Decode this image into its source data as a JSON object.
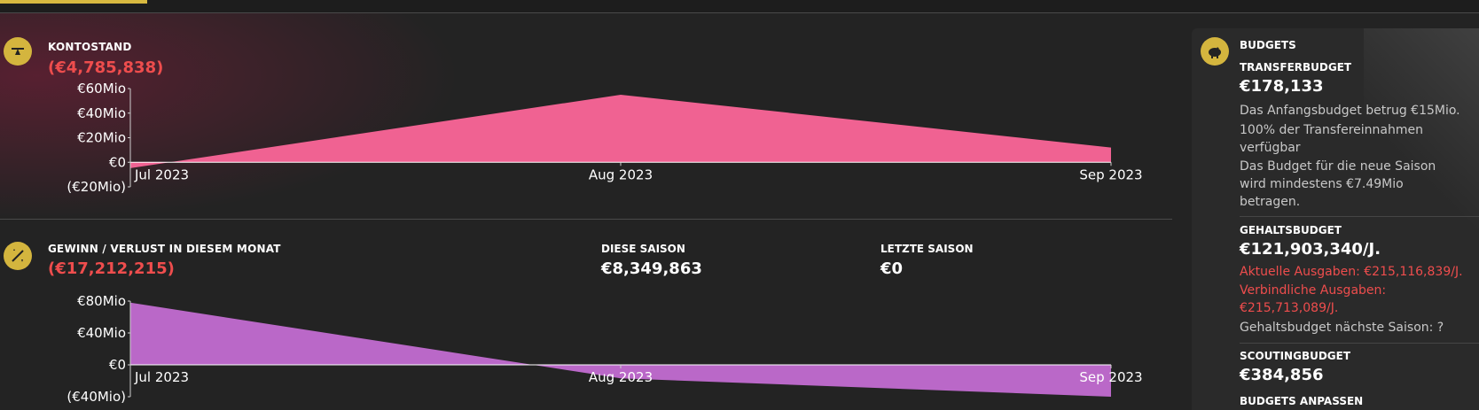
{
  "balance": {
    "label": "KONTOSTAND",
    "value": "(€4,785,838)",
    "chart_data": {
      "type": "area",
      "x": [
        "Jul 2023",
        "Aug 2023",
        "Sep 2023"
      ],
      "y": [
        -4.8,
        55,
        12
      ],
      "yticks": [
        "€60Mio",
        "€40Mio",
        "€20Mio",
        "€0",
        "(€20Mio)"
      ],
      "ylim": [
        -20,
        60
      ],
      "color": "#f06292"
    }
  },
  "profit": {
    "label": "GEWINN / VERLUST IN DIESEM MONAT",
    "value": "(€17,212,215)",
    "this_season_label": "DIESE SAISON",
    "this_season_value": "€8,349,863",
    "last_season_label": "LETZTE SAISON",
    "last_season_value": "€0",
    "chart_data": {
      "type": "area",
      "x": [
        "Jul 2023",
        "Aug 2023",
        "Sep 2023"
      ],
      "y": [
        78,
        -17,
        -40
      ],
      "yticks": [
        "€80Mio",
        "€40Mio",
        "€0",
        "(€40Mio)"
      ],
      "ylim": [
        -40,
        80
      ],
      "color": "#ba68c8"
    }
  },
  "budgets": {
    "title": "BUDGETS",
    "transfer_label": "TRANSFERBUDGET",
    "transfer_value": "€178,133",
    "transfer_note1": "Das Anfangsbudget betrug €15Mio.",
    "transfer_note2": "100% der Transfereinnahmen verfügbar",
    "transfer_note3": "Das Budget für die neue Saison wird mindestens €7.49Mio betragen.",
    "wage_label": "GEHALTSBUDGET",
    "wage_value": "€121,903,340/J.",
    "wage_current": "Aktuelle Ausgaben: €215,116,839/J.",
    "wage_committed": "Verbindliche Ausgaben: €215,713,089/J.",
    "wage_next": "Gehaltsbudget nächste Saison: ?",
    "scouting_label": "SCOUTINGBUDGET",
    "scouting_value": "€384,856",
    "adjust_label": "BUDGETS ANPASSEN"
  },
  "colors": {
    "accent": "#d4b53e",
    "negative": "#ee4d4d",
    "balance_area": "#f06292",
    "profit_area": "#ba68c8"
  }
}
